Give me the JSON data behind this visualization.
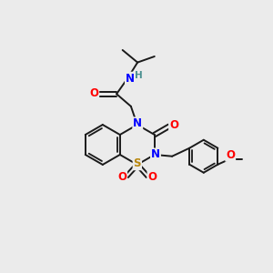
{
  "bg_color": "#ebebeb",
  "bond_color": "#1a1a1a",
  "N_color": "#0000ff",
  "O_color": "#ff0000",
  "S_color": "#b8860b",
  "H_color": "#4a9090",
  "figsize": [
    3.0,
    3.0
  ],
  "dpi": 100,
  "xlim": [
    0,
    10
  ],
  "ylim": [
    0,
    10
  ],
  "lw": 1.4,
  "fs": 8.5
}
